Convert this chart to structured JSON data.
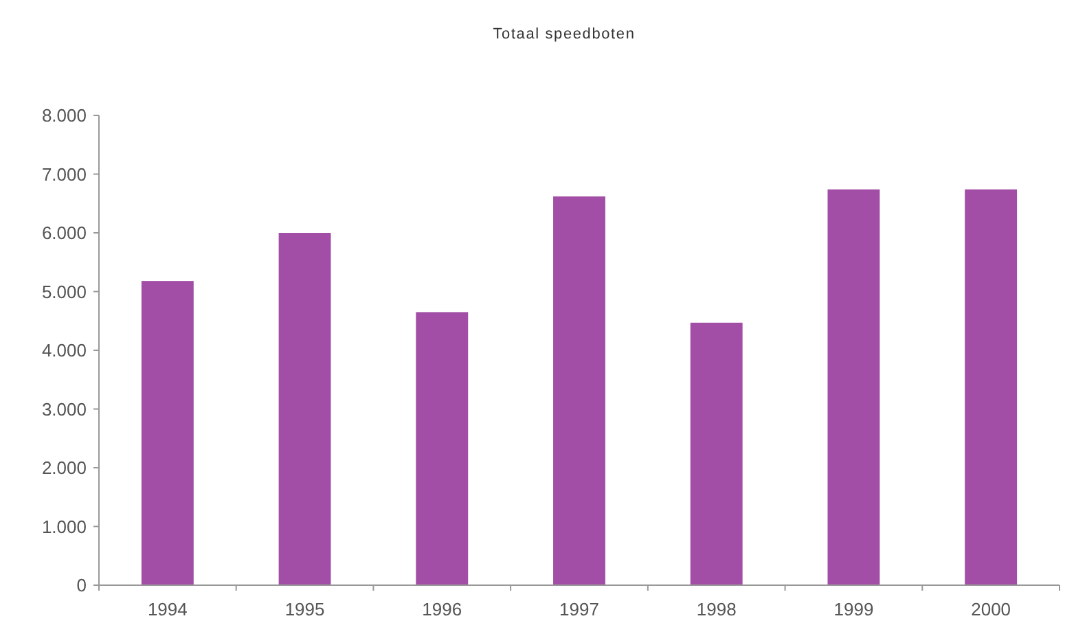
{
  "chart_data": {
    "type": "bar",
    "title": "Totaal speedboten",
    "categories": [
      "1994",
      "1995",
      "1996",
      "1997",
      "1998",
      "1999",
      "2000"
    ],
    "values": [
      5180,
      6000,
      4650,
      6620,
      4470,
      6740,
      6740
    ],
    "color": "#a24ea6",
    "ylim": [
      0,
      8000
    ],
    "yticks": [
      {
        "value": 0,
        "label": "0"
      },
      {
        "value": 1000,
        "label": "1.000"
      },
      {
        "value": 2000,
        "label": "2.000"
      },
      {
        "value": 3000,
        "label": "3.000"
      },
      {
        "value": 4000,
        "label": "4.000"
      },
      {
        "value": 5000,
        "label": "5.000"
      },
      {
        "value": 6000,
        "label": "6.000"
      },
      {
        "value": 7000,
        "label": "7.000"
      },
      {
        "value": 8000,
        "label": "8.000"
      }
    ],
    "grid": false
  }
}
